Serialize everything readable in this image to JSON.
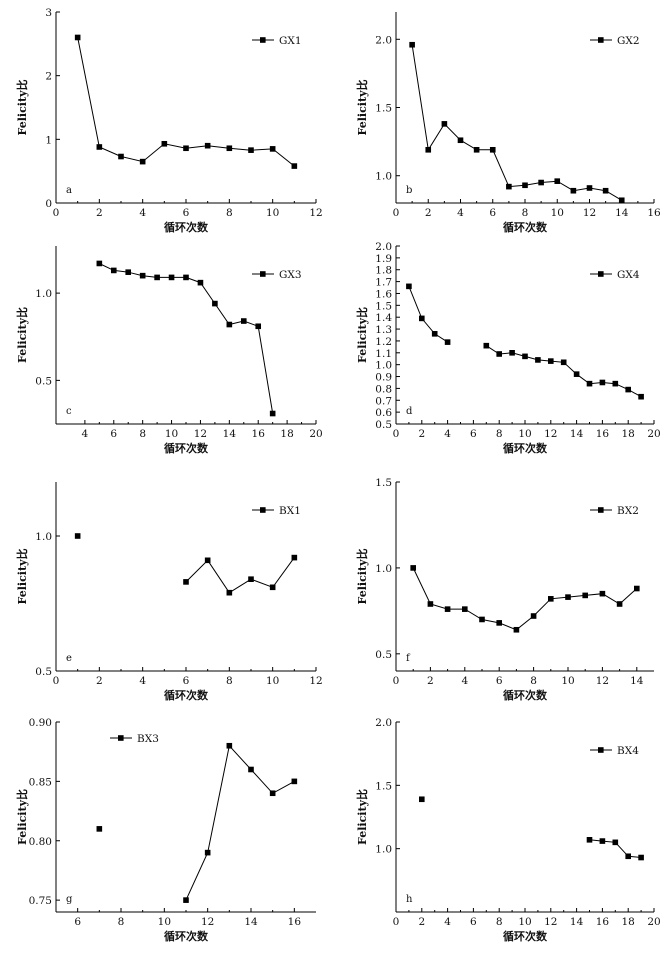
{
  "chart_data": [
    {
      "panel": "a",
      "type": "line",
      "legend": "GX1",
      "legend_position": "top-right",
      "xlabel": "循环次数",
      "ylabel": "Felicity比",
      "xlim": [
        0,
        12
      ],
      "ylim": [
        0,
        3
      ],
      "xticks": [
        0,
        2,
        4,
        6,
        8,
        10,
        12
      ],
      "yticks": [
        0,
        1,
        2,
        3
      ],
      "ytick_labels": [
        "0",
        "1",
        "2",
        "3"
      ],
      "series": [
        {
          "name": "GX1",
          "x": [
            1,
            2,
            3,
            4,
            5,
            6,
            7,
            8,
            9,
            10,
            11
          ],
          "y": [
            2.6,
            0.88,
            0.73,
            0.65,
            0.93,
            0.86,
            0.9,
            0.86,
            0.83,
            0.85,
            0.58
          ]
        }
      ]
    },
    {
      "panel": "b",
      "type": "line",
      "legend": "GX2",
      "legend_position": "top-right",
      "xlabel": "循环次数",
      "ylabel": "Felicity比",
      "xlim": [
        0,
        16
      ],
      "ylim": [
        0.8,
        2.2
      ],
      "xticks": [
        0,
        2,
        4,
        6,
        8,
        10,
        12,
        14,
        16
      ],
      "yticks": [
        1.0,
        1.5,
        2.0
      ],
      "ytick_labels": [
        "1.0",
        "1.5",
        "2.0"
      ],
      "series": [
        {
          "name": "GX2",
          "x": [
            1,
            2,
            3,
            4,
            5,
            6,
            7,
            8,
            9,
            10,
            11,
            12,
            13,
            14
          ],
          "y": [
            1.96,
            1.19,
            1.38,
            1.26,
            1.19,
            1.19,
            0.92,
            0.93,
            0.95,
            0.96,
            0.89,
            0.91,
            0.89,
            0.82
          ]
        }
      ]
    },
    {
      "panel": "c",
      "type": "line",
      "legend": "GX3",
      "legend_position": "top-right",
      "xlabel": "循环次数",
      "ylabel": "Felicity比",
      "xlim": [
        2,
        20
      ],
      "ylim": [
        0.25,
        1.27
      ],
      "xticks": [
        4,
        6,
        8,
        10,
        12,
        14,
        16,
        18,
        20
      ],
      "yticks": [
        0.5,
        1.0
      ],
      "ytick_labels": [
        "0.5",
        "1.0"
      ],
      "series": [
        {
          "name": "GX3",
          "x": [
            5,
            6,
            7,
            8,
            9,
            10,
            11,
            12,
            13,
            14,
            15,
            16,
            17
          ],
          "y": [
            1.17,
            1.13,
            1.12,
            1.1,
            1.09,
            1.09,
            1.09,
            1.06,
            0.94,
            0.82,
            0.84,
            0.81,
            0.31
          ]
        }
      ]
    },
    {
      "panel": "d",
      "type": "line",
      "legend": "GX4",
      "legend_position": "top-right",
      "xlabel": "循环次数",
      "ylabel": "Felicity比",
      "xlim": [
        0,
        20
      ],
      "ylim": [
        0.5,
        2.0
      ],
      "xticks": [
        0,
        2,
        4,
        6,
        8,
        10,
        12,
        14,
        16,
        18,
        20
      ],
      "yticks": [
        0.5,
        0.6,
        0.7,
        0.8,
        0.9,
        1.0,
        1.1,
        1.2,
        1.3,
        1.4,
        1.5,
        1.6,
        1.7,
        1.8,
        1.9,
        2.0
      ],
      "ytick_labels": [
        "0.5",
        "0.6",
        "0.7",
        "0.8",
        "0.9",
        "1.0",
        "1.1",
        "1.2",
        "1.3",
        "1.4",
        "1.5",
        "1.6",
        "1.7",
        "1.8",
        "1.9",
        "2.0"
      ],
      "series": [
        {
          "name": "GX4",
          "x": [
            1,
            2,
            3,
            4
          ],
          "y": [
            1.66,
            1.39,
            1.26,
            1.19
          ]
        },
        {
          "x": [
            7,
            8,
            9,
            10,
            11,
            12,
            13,
            14,
            15,
            16,
            17,
            18,
            19
          ],
          "y": [
            1.16,
            1.09,
            1.1,
            1.07,
            1.04,
            1.03,
            1.02,
            0.92,
            0.84,
            0.85,
            0.84,
            0.79,
            0.73
          ]
        }
      ]
    },
    {
      "panel": "e",
      "type": "line",
      "legend": "BX1",
      "legend_position": "top-right",
      "xlabel": "循环次数",
      "ylabel": "Felicity比",
      "xlim": [
        0,
        12
      ],
      "ylim": [
        0.5,
        1.2
      ],
      "xticks": [
        0,
        2,
        4,
        6,
        8,
        10,
        12
      ],
      "yticks": [
        0.5,
        1.0
      ],
      "ytick_labels": [
        "0.5",
        "1.0"
      ],
      "series": [
        {
          "name": "BX1",
          "x": [
            1
          ],
          "y": [
            1.0
          ]
        },
        {
          "x": [
            6,
            7,
            8,
            9,
            10,
            11
          ],
          "y": [
            0.83,
            0.91,
            0.79,
            0.84,
            0.81,
            0.92
          ]
        }
      ]
    },
    {
      "panel": "f",
      "type": "line",
      "legend": "BX2",
      "legend_position": "top-right",
      "xlabel": "循环次数",
      "ylabel": "Felicity比",
      "xlim": [
        0,
        15
      ],
      "ylim": [
        0.4,
        1.5
      ],
      "xticks": [
        0,
        2,
        4,
        6,
        8,
        10,
        12,
        14
      ],
      "yticks": [
        0.5,
        1.0,
        1.5
      ],
      "ytick_labels": [
        "0.5",
        "1.0",
        "1.5"
      ],
      "series": [
        {
          "name": "BX2",
          "x": [
            1,
            2,
            3,
            4,
            5,
            6,
            7,
            8,
            9,
            10,
            11,
            12,
            13,
            14
          ],
          "y": [
            1.0,
            0.79,
            0.76,
            0.76,
            0.7,
            0.68,
            0.64,
            0.72,
            0.82,
            0.83,
            0.84,
            0.85,
            0.79,
            0.88
          ]
        }
      ]
    },
    {
      "panel": "g",
      "type": "line",
      "legend": "BX3",
      "legend_position": "top-left",
      "xlabel": "循环次数",
      "ylabel": "Felicity比",
      "xlim": [
        5,
        17
      ],
      "ylim": [
        0.74,
        0.9
      ],
      "xticks": [
        6,
        8,
        10,
        12,
        14,
        16
      ],
      "yticks": [
        0.75,
        0.8,
        0.85,
        0.9
      ],
      "ytick_labels": [
        "0.75",
        "0.80",
        "0.85",
        "0.90"
      ],
      "series": [
        {
          "name": "BX3",
          "x": [
            7
          ],
          "y": [
            0.81
          ]
        },
        {
          "x": [
            11,
            12,
            13,
            14,
            15,
            16
          ],
          "y": [
            0.75,
            0.79,
            0.88,
            0.86,
            0.84,
            0.85
          ]
        }
      ]
    },
    {
      "panel": "h",
      "type": "line",
      "legend": "BX4",
      "legend_position": "top-right",
      "xlabel": "循环次数",
      "ylabel": "Felicity比",
      "xlim": [
        0,
        20
      ],
      "ylim": [
        0.5,
        2.0
      ],
      "xticks": [
        0,
        2,
        4,
        6,
        8,
        10,
        12,
        14,
        16,
        18,
        20
      ],
      "yticks": [
        1.0,
        1.5,
        2.0
      ],
      "ytick_labels": [
        "1.0",
        "1.5",
        "2.0"
      ],
      "series": [
        {
          "name": "BX4",
          "x": [
            2
          ],
          "y": [
            1.39
          ]
        },
        {
          "x": [
            15,
            16,
            17,
            18,
            19
          ],
          "y": [
            1.07,
            1.06,
            1.05,
            0.94,
            0.93
          ]
        }
      ]
    }
  ]
}
